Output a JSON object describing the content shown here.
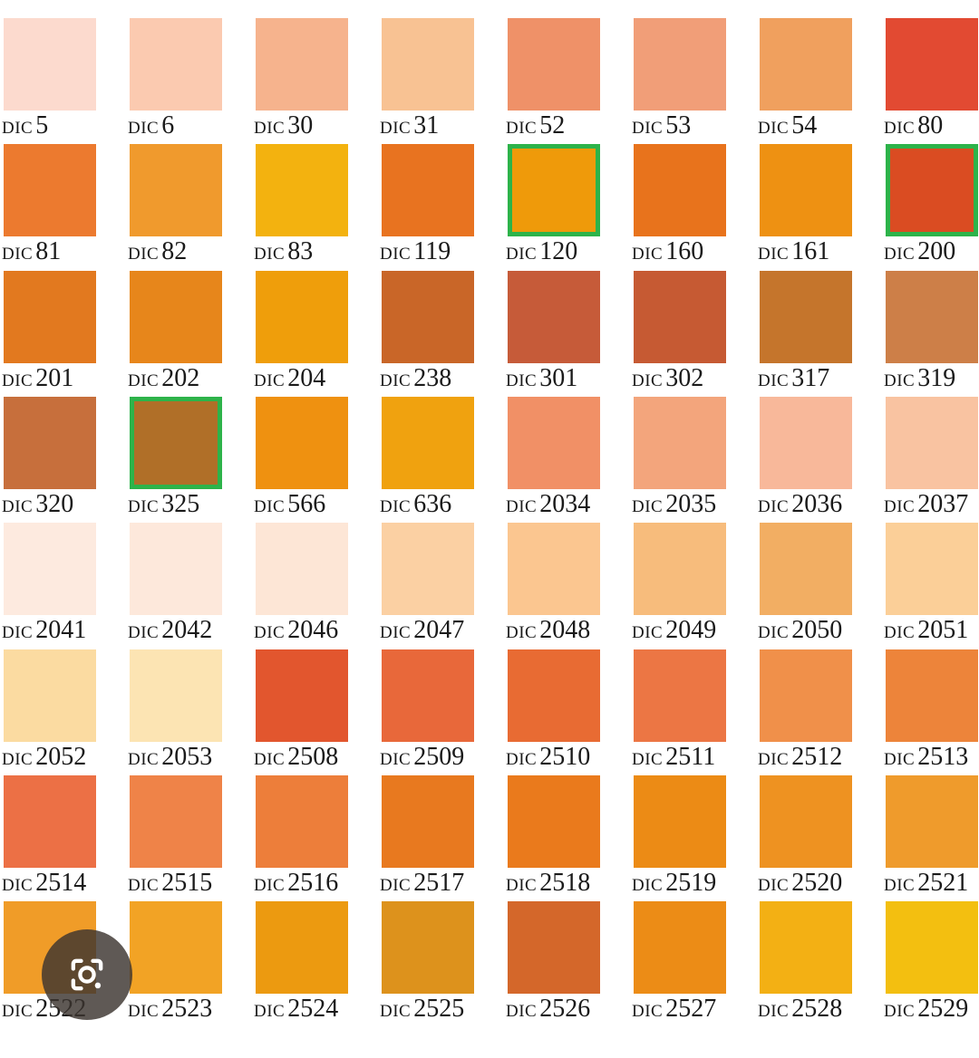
{
  "chart_title": "",
  "label_prefix": "DIC",
  "selection_color": "#2db34a",
  "lens_button": {
    "icon": "google-lens-icon"
  },
  "swatches": [
    {
      "code": "5",
      "color": "#fcdace",
      "selected": false
    },
    {
      "code": "6",
      "color": "#fbcab0",
      "selected": false
    },
    {
      "code": "30",
      "color": "#f6b38d",
      "selected": false
    },
    {
      "code": "31",
      "color": "#f8c293",
      "selected": false
    },
    {
      "code": "52",
      "color": "#ef9168",
      "selected": false
    },
    {
      "code": "53",
      "color": "#f19e78",
      "selected": false
    },
    {
      "code": "54",
      "color": "#f0a05e",
      "selected": false
    },
    {
      "code": "80",
      "color": "#e24a32",
      "selected": false
    },
    {
      "code": "81",
      "color": "#ec7a2f",
      "selected": false
    },
    {
      "code": "82",
      "color": "#f09a2d",
      "selected": false
    },
    {
      "code": "83",
      "color": "#f3b20f",
      "selected": false
    },
    {
      "code": "119",
      "color": "#e87320",
      "selected": false
    },
    {
      "code": "120",
      "color": "#ef9a0a",
      "selected": true
    },
    {
      "code": "160",
      "color": "#e8731c",
      "selected": false
    },
    {
      "code": "161",
      "color": "#ee9112",
      "selected": false
    },
    {
      "code": "200",
      "color": "#da4c22",
      "selected": true
    },
    {
      "code": "201",
      "color": "#e2791f",
      "selected": false
    },
    {
      "code": "202",
      "color": "#e7861b",
      "selected": false
    },
    {
      "code": "204",
      "color": "#ef9e0b",
      "selected": false
    },
    {
      "code": "238",
      "color": "#c96628",
      "selected": false
    },
    {
      "code": "301",
      "color": "#c65b39",
      "selected": false
    },
    {
      "code": "302",
      "color": "#c65a33",
      "selected": false
    },
    {
      "code": "317",
      "color": "#c5752c",
      "selected": false
    },
    {
      "code": "319",
      "color": "#cd7f48",
      "selected": false
    },
    {
      "code": "320",
      "color": "#c76f3c",
      "selected": false
    },
    {
      "code": "325",
      "color": "#b06f28",
      "selected": true
    },
    {
      "code": "566",
      "color": "#ef9110",
      "selected": false
    },
    {
      "code": "636",
      "color": "#f0a20f",
      "selected": false
    },
    {
      "code": "2034",
      "color": "#f19066",
      "selected": false
    },
    {
      "code": "2035",
      "color": "#f3a57c",
      "selected": false
    },
    {
      "code": "2036",
      "color": "#f8b89a",
      "selected": false
    },
    {
      "code": "2037",
      "color": "#f9c3a1",
      "selected": false
    },
    {
      "code": "2041",
      "color": "#fdeadf",
      "selected": false
    },
    {
      "code": "2042",
      "color": "#fde8db",
      "selected": false
    },
    {
      "code": "2046",
      "color": "#fde6d6",
      "selected": false
    },
    {
      "code": "2047",
      "color": "#fbd0a3",
      "selected": false
    },
    {
      "code": "2048",
      "color": "#fbc690",
      "selected": false
    },
    {
      "code": "2049",
      "color": "#f7bc7c",
      "selected": false
    },
    {
      "code": "2050",
      "color": "#f2ae63",
      "selected": false
    },
    {
      "code": "2051",
      "color": "#fbcf98",
      "selected": false
    },
    {
      "code": "2052",
      "color": "#fbdba1",
      "selected": false
    },
    {
      "code": "2053",
      "color": "#fce4b3",
      "selected": false
    },
    {
      "code": "2508",
      "color": "#e2562e",
      "selected": false
    },
    {
      "code": "2509",
      "color": "#e8683a",
      "selected": false
    },
    {
      "code": "2510",
      "color": "#e86b33",
      "selected": false
    },
    {
      "code": "2511",
      "color": "#ec7644",
      "selected": false
    },
    {
      "code": "2512",
      "color": "#f0904a",
      "selected": false
    },
    {
      "code": "2513",
      "color": "#ed843a",
      "selected": false
    },
    {
      "code": "2514",
      "color": "#ec7045",
      "selected": false
    },
    {
      "code": "2515",
      "color": "#ef8348",
      "selected": false
    },
    {
      "code": "2516",
      "color": "#ed7e3a",
      "selected": false
    },
    {
      "code": "2517",
      "color": "#e8791f",
      "selected": false
    },
    {
      "code": "2518",
      "color": "#ea7a1c",
      "selected": false
    },
    {
      "code": "2519",
      "color": "#ec8b15",
      "selected": false
    },
    {
      "code": "2520",
      "color": "#ee9221",
      "selected": false
    },
    {
      "code": "2521",
      "color": "#ef9b2c",
      "selected": false
    },
    {
      "code": "2522",
      "color": "#f09c28",
      "selected": false
    },
    {
      "code": "2523",
      "color": "#f2a325",
      "selected": false
    },
    {
      "code": "2524",
      "color": "#ec9a10",
      "selected": false
    },
    {
      "code": "2525",
      "color": "#dd921c",
      "selected": false
    },
    {
      "code": "2526",
      "color": "#d4672a",
      "selected": false
    },
    {
      "code": "2527",
      "color": "#ec8c16",
      "selected": false
    },
    {
      "code": "2528",
      "color": "#f3b014",
      "selected": false
    },
    {
      "code": "2529",
      "color": "#f3bf10",
      "selected": false
    }
  ]
}
